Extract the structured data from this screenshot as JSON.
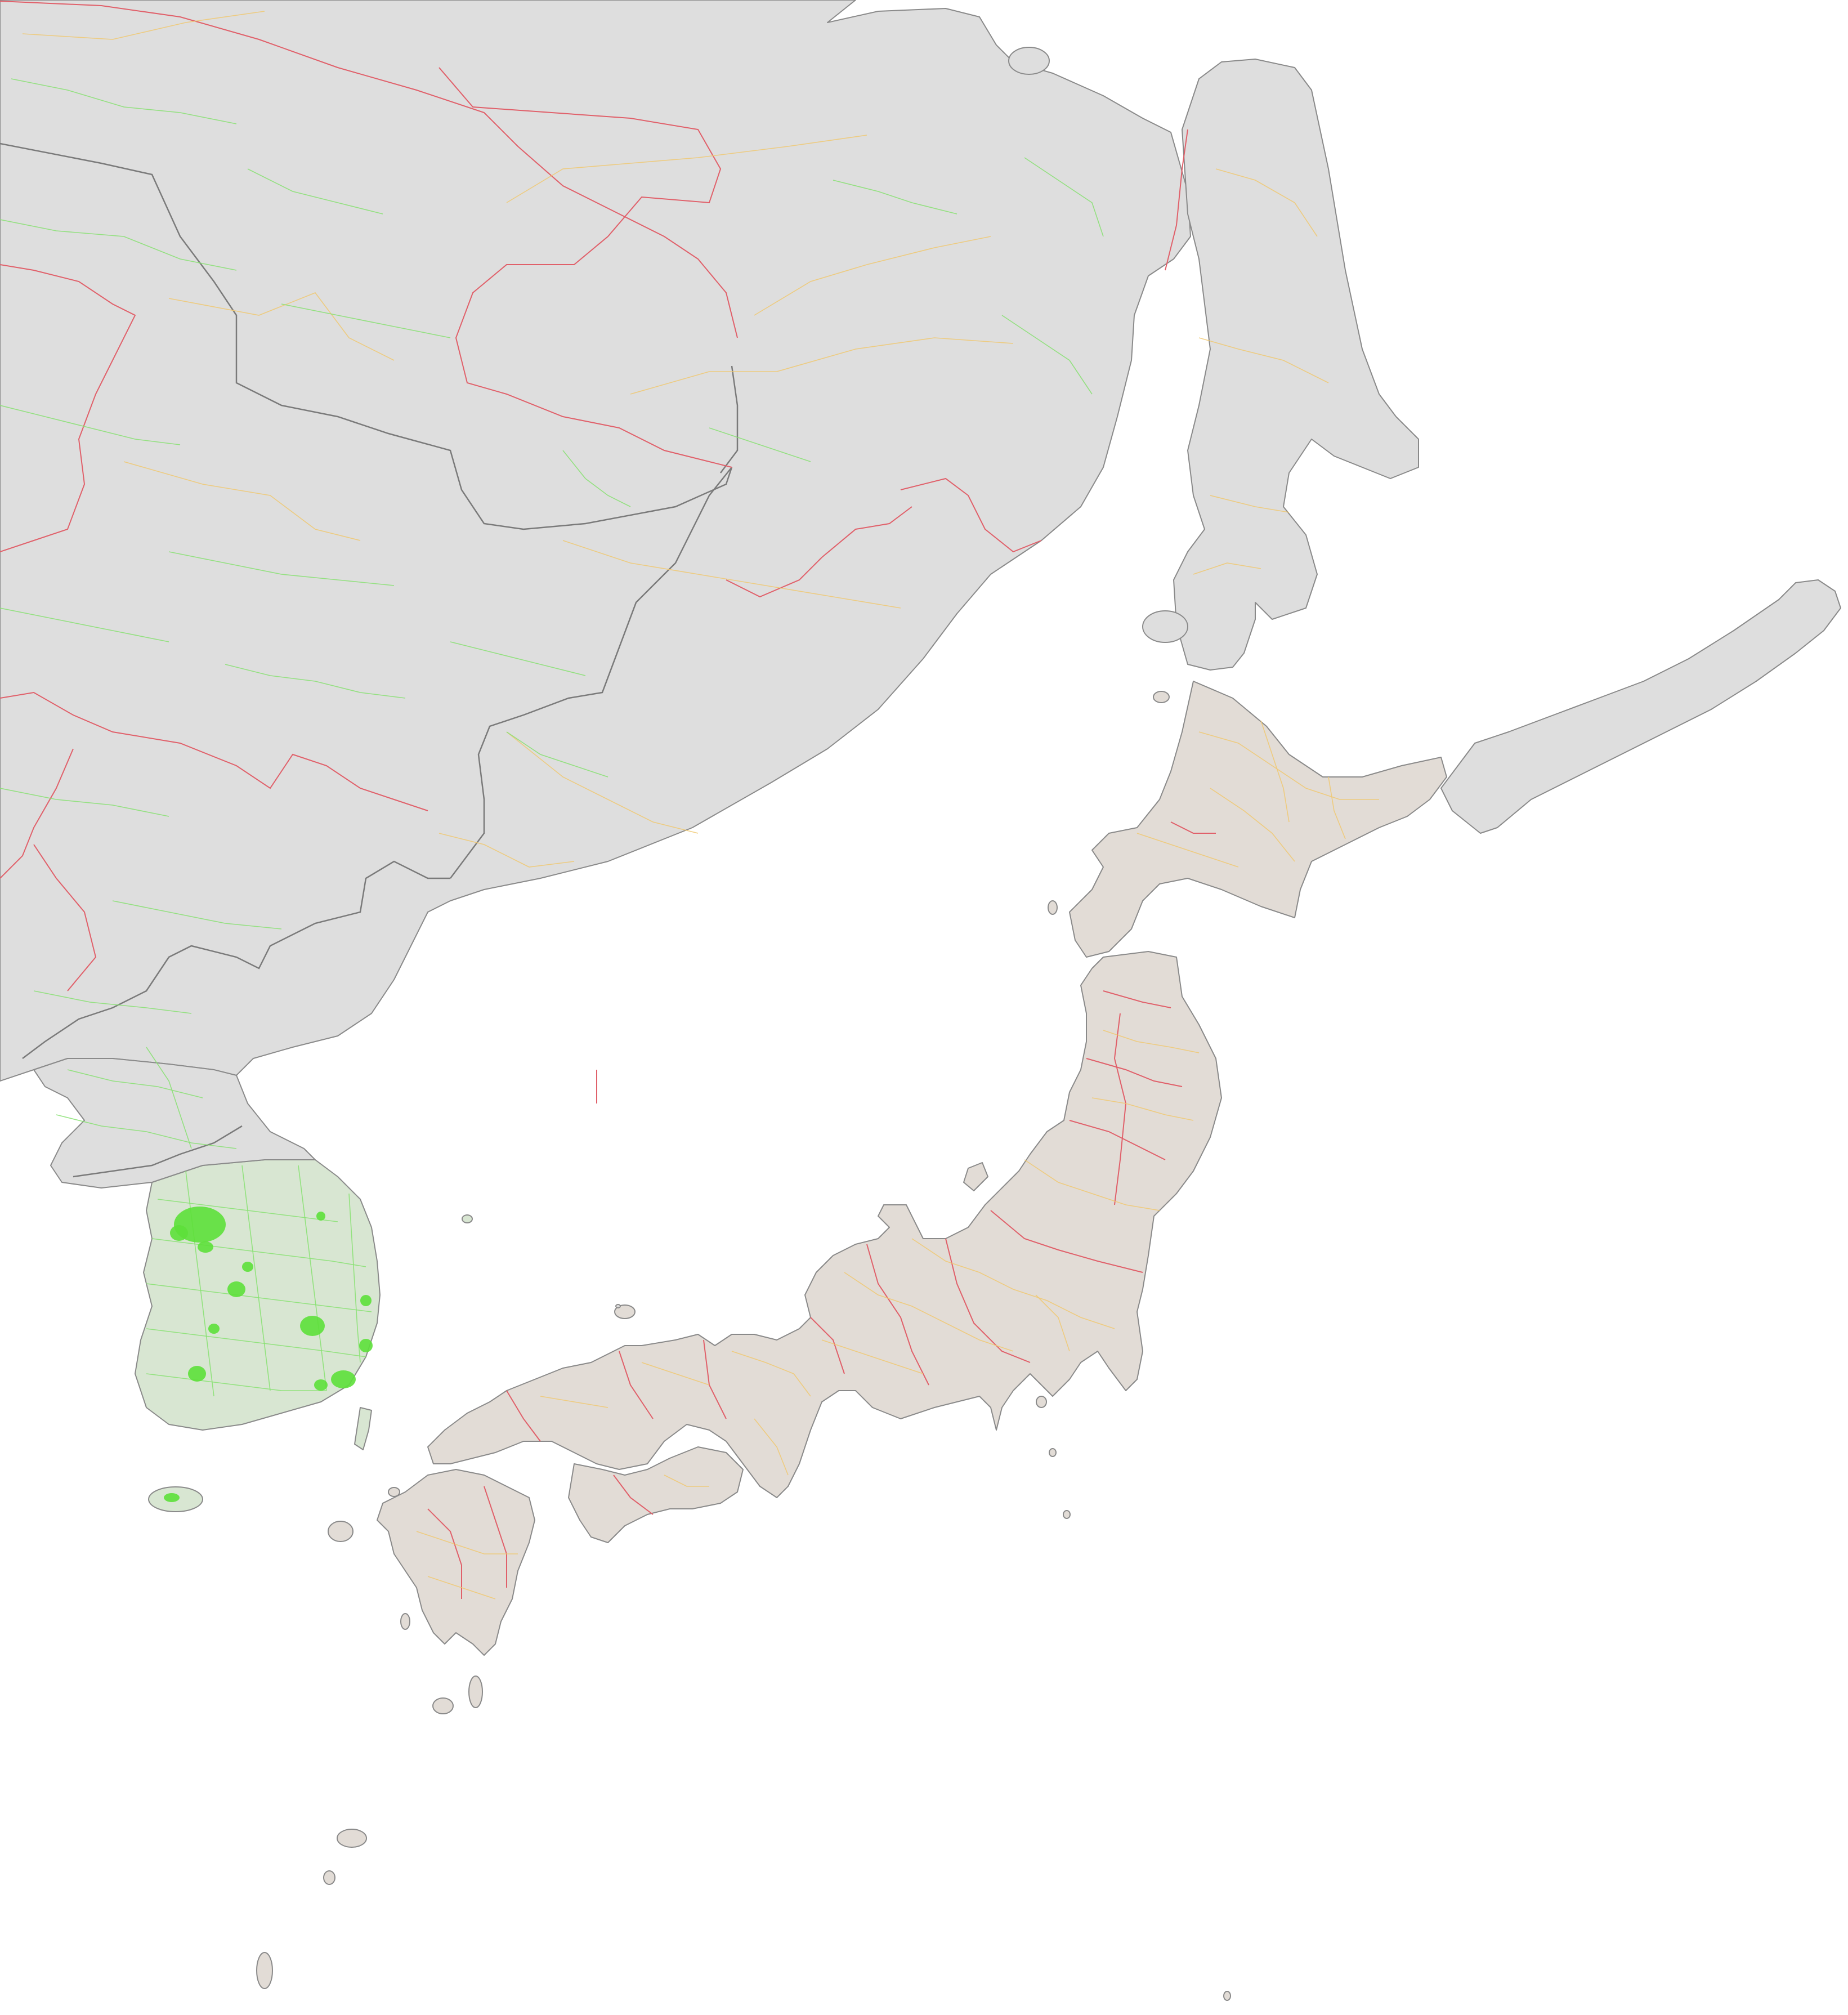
{
  "map": {
    "region": "",
    "colors": {
      "background": "#ffffff",
      "land": "#dedede",
      "coastline": "#8a8a8a",
      "country_border": "#7a7a7a",
      "admin_level_1_border": "#e0606a",
      "admin_level_2_border": "#f0c870",
      "admin_level_3_border": "#86e070",
      "dense_urban_fill": "#5de03a"
    },
    "layers": [
      "land",
      "country-borders",
      "admin-level-1",
      "admin-level-2",
      "admin-level-3",
      "dense-urban-areas"
    ]
  }
}
